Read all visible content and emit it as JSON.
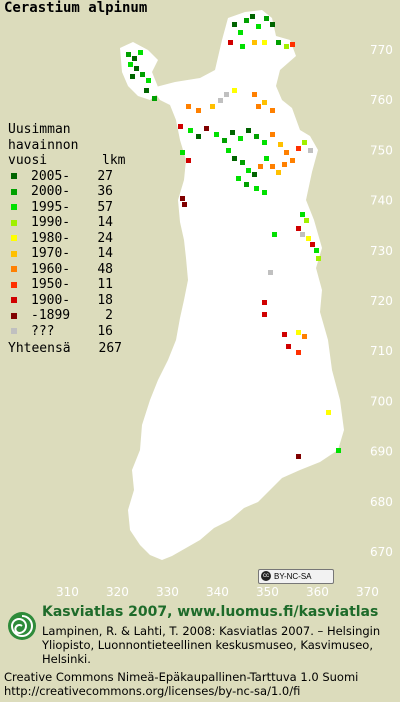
{
  "title": "Cerastium alpinum",
  "legend": {
    "header_line1": "Uusimman",
    "header_line2": "havainnon",
    "header_line3": "vuosi",
    "header_col": "lkm",
    "rows": [
      {
        "label": "2005-",
        "count": "27",
        "color": "#006400"
      },
      {
        "label": "2000-",
        "count": "36",
        "color": "#00a000"
      },
      {
        "label": "1995-",
        "count": "57",
        "color": "#00e000"
      },
      {
        "label": "1990-",
        "count": "14",
        "color": "#a0f000"
      },
      {
        "label": "1980-",
        "count": "24",
        "color": "#ffff00"
      },
      {
        "label": "1970-",
        "count": "14",
        "color": "#ffc000"
      },
      {
        "label": "1960-",
        "count": "48",
        "color": "#ff8000"
      },
      {
        "label": "1950-",
        "count": "11",
        "color": "#ff3000"
      },
      {
        "label": "1900-",
        "count": "18",
        "color": "#d00000"
      },
      {
        "label": "-1899",
        "count": "2",
        "color": "#800000"
      },
      {
        "label": "???",
        "count": "16",
        "color": "#c0c0c0"
      }
    ],
    "total_label": "Yhteensä",
    "total_count": "267"
  },
  "axes": {
    "y_ticks": [
      "770",
      "760",
      "750",
      "740",
      "730",
      "720",
      "710",
      "700",
      "690",
      "680",
      "670"
    ],
    "x_ticks": [
      "310",
      "320",
      "330",
      "340",
      "350",
      "360",
      "370"
    ]
  },
  "cc_badge": "BY-NC-SA",
  "footer": {
    "brand": "Kasviatlas 2007, www.luomus.fi/kasviatlas",
    "citation": "Lampinen, R. & Lahti, T. 2008: Kasviatlas 2007. – Helsingin Yliopisto, Luonnontieteellinen keskusmuseo, Kasvimuseo, Helsinki.",
    "license_line1": "Creative Commons Nimeä-Epäkaupallinen-Tarttuva 1.0 Suomi",
    "license_line2": "http://creativecommons.org/licenses/by-nc-sa/1.0/fi"
  }
}
